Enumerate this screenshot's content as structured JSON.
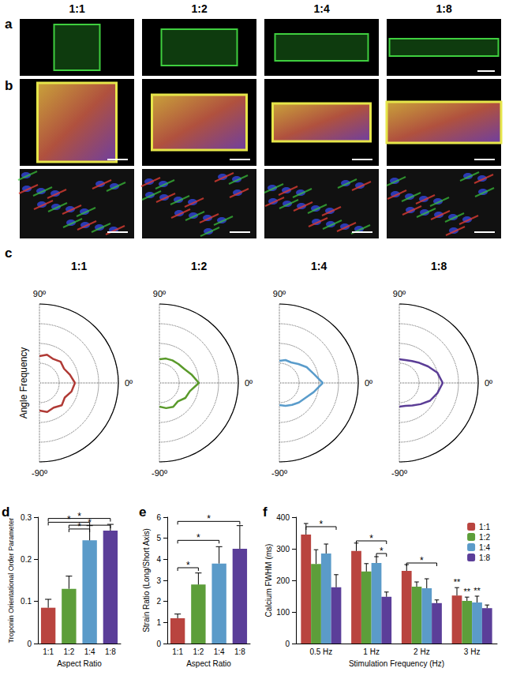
{
  "columns": [
    "1:1",
    "1:2",
    "1:4",
    "1:8"
  ],
  "panel_letters": [
    "a",
    "b",
    "c",
    "d",
    "e",
    "f"
  ],
  "chart_data": [
    {
      "type": "polar",
      "title": "1:1",
      "ylabel": "Angle Frequency",
      "color": "#b03a35",
      "x": [
        -90,
        -75,
        -60,
        -45,
        -30,
        -15,
        0,
        15,
        30,
        45,
        60,
        75,
        90
      ],
      "values": [
        0.35,
        0.38,
        0.36,
        0.4,
        0.37,
        0.42,
        0.45,
        0.4,
        0.36,
        0.38,
        0.35,
        0.37,
        0.34
      ],
      "xlim": [
        -90,
        90
      ],
      "xticks": [
        {
          "value": -90,
          "label": "-90º"
        },
        {
          "value": 0,
          "label": "0º"
        },
        {
          "value": 90,
          "label": "90º"
        }
      ],
      "ylim": [
        0,
        1
      ],
      "yticks": [
        0,
        0.25,
        0.5,
        0.75,
        1
      ],
      "tick_labels": "x",
      "grid": true
    },
    {
      "type": "polar",
      "title": "1:2",
      "color": "#5a9a2b",
      "x": [
        -90,
        -75,
        -60,
        -45,
        -30,
        -15,
        0,
        15,
        30,
        45,
        60,
        75,
        90
      ],
      "values": [
        0.3,
        0.33,
        0.35,
        0.33,
        0.38,
        0.4,
        0.5,
        0.42,
        0.36,
        0.34,
        0.33,
        0.32,
        0.3
      ],
      "xlim": [
        -90,
        90
      ],
      "xticks": [
        {
          "value": -90,
          "label": "-90º"
        },
        {
          "value": 0,
          "label": "0º"
        },
        {
          "value": 90,
          "label": "90º"
        }
      ],
      "ylim": [
        0,
        1
      ],
      "yticks": [
        0,
        0.25,
        0.5,
        0.75,
        1
      ],
      "tick_labels": "x",
      "grid": true
    },
    {
      "type": "polar",
      "title": "1:4",
      "color": "#5a9ccb",
      "x": [
        -90,
        -75,
        -60,
        -45,
        -30,
        -15,
        0,
        15,
        30,
        45,
        60,
        75,
        90
      ],
      "values": [
        0.28,
        0.3,
        0.32,
        0.35,
        0.38,
        0.45,
        0.55,
        0.45,
        0.4,
        0.34,
        0.3,
        0.3,
        0.28
      ],
      "xlim": [
        -90,
        90
      ],
      "xticks": [
        {
          "value": -90,
          "label": "-90º"
        },
        {
          "value": 0,
          "label": "0º"
        },
        {
          "value": 90,
          "label": "90º"
        }
      ],
      "ylim": [
        0,
        1
      ],
      "yticks": [
        0,
        0.25,
        0.5,
        0.75,
        1
      ],
      "tick_labels": "x",
      "grid": true
    },
    {
      "type": "polar",
      "title": "1:8",
      "color": "#5b3d96",
      "x": [
        -90,
        -75,
        -60,
        -45,
        -30,
        -15,
        0,
        15,
        30,
        45,
        60,
        75,
        90
      ],
      "values": [
        0.3,
        0.3,
        0.33,
        0.38,
        0.45,
        0.5,
        0.55,
        0.5,
        0.42,
        0.36,
        0.32,
        0.3,
        0.3
      ],
      "xlim": [
        -90,
        90
      ],
      "xticks": [
        {
          "value": -90,
          "label": "-90º"
        },
        {
          "value": 0,
          "label": "0º"
        },
        {
          "value": 90,
          "label": "90º"
        }
      ],
      "ylim": [
        0,
        1
      ],
      "yticks": [
        0,
        0.25,
        0.5,
        0.75,
        1
      ],
      "tick_labels": "x",
      "grid": true
    },
    {
      "type": "bar",
      "ylabel": "Troponin Orientational Order Parameter",
      "xlabel": "Aspect Ratio",
      "categories": [
        "1:1",
        "1:2",
        "1:4",
        "1:8"
      ],
      "values": [
        0.085,
        0.13,
        0.245,
        0.268
      ],
      "errors": [
        0.02,
        0.03,
        0.035,
        0.015
      ],
      "colors": [
        "#b9443f",
        "#5d9e3a",
        "#5b9bc9",
        "#5b3e99"
      ],
      "ylim": [
        0,
        0.3
      ],
      "yticks": [
        0,
        0.1,
        0.2,
        0.3
      ],
      "grid": false,
      "brackets": [
        {
          "from": "1:1",
          "to": "1:8",
          "y": 0.297,
          "label": "*"
        },
        {
          "from": "1:1",
          "to": "1:4",
          "y": 0.288,
          "label": "*"
        },
        {
          "from": "1:2",
          "to": "1:8",
          "y": 0.281,
          "label": "*"
        },
        {
          "from": "1:2",
          "to": "1:4",
          "y": 0.272,
          "label": "*"
        }
      ]
    },
    {
      "type": "bar",
      "ylabel": "Strain Ratio (Long/Short Axis)",
      "xlabel": "Aspect Ratio",
      "categories": [
        "1:1",
        "1:2",
        "1:4",
        "1:8"
      ],
      "values": [
        1.2,
        2.8,
        3.8,
        4.5
      ],
      "errors": [
        0.2,
        0.55,
        0.8,
        1.1
      ],
      "colors": [
        "#b9443f",
        "#5d9e3a",
        "#5b9bc9",
        "#5b3e99"
      ],
      "ylim": [
        0,
        6
      ],
      "yticks": [
        0,
        1,
        2,
        3,
        4,
        5,
        6
      ],
      "grid": false,
      "brackets": [
        {
          "from": "1:1",
          "to": "1:2",
          "y": 3.6,
          "label": "*"
        },
        {
          "from": "1:1",
          "to": "1:4",
          "y": 4.9,
          "label": "*"
        },
        {
          "from": "1:1",
          "to": "1:8",
          "y": 5.8,
          "label": "*"
        }
      ]
    },
    {
      "type": "bar",
      "ylabel": "Calcium FWHM (ms)",
      "xlabel": "Stimulation Frequency (Hz)",
      "categories": [
        "0.5 Hz",
        "1 Hz",
        "2 Hz",
        "3 Hz"
      ],
      "series": [
        {
          "name": "1:1",
          "color": "#b9443f",
          "values": [
            345,
            293,
            230,
            152
          ],
          "errors": [
            35,
            25,
            20,
            25
          ]
        },
        {
          "name": "1:2",
          "color": "#5d9e3a",
          "values": [
            252,
            228,
            180,
            135
          ],
          "errors": [
            45,
            25,
            15,
            12
          ]
        },
        {
          "name": "1:4",
          "color": "#5b9bc9",
          "values": [
            285,
            255,
            175,
            130
          ],
          "errors": [
            30,
            20,
            30,
            20
          ]
        },
        {
          "name": "1:8",
          "color": "#5b3e99",
          "values": [
            178,
            148,
            128,
            112
          ],
          "errors": [
            40,
            15,
            10,
            10
          ]
        }
      ],
      "ylim": [
        0,
        400
      ],
      "yticks": [
        0,
        100,
        200,
        300,
        400
      ],
      "grid": false,
      "legend": "upper right",
      "brackets": [
        {
          "category": "0.5 Hz",
          "from": "1:1",
          "to": "1:8",
          "y": 370,
          "label": "*"
        },
        {
          "category": "1 Hz",
          "from": "1:1",
          "to": "1:8",
          "y": 325,
          "label": "*"
        },
        {
          "category": "1 Hz",
          "from": "1:4",
          "to": "1:8",
          "y": 285,
          "label": "*"
        },
        {
          "category": "2 Hz",
          "from": "1:1",
          "to": "1:8",
          "y": 255,
          "label": "*"
        }
      ],
      "annotations": [
        {
          "category": "3 Hz",
          "series": "1:1",
          "y": 182,
          "label": "**"
        },
        {
          "category": "3 Hz",
          "series": "1:2",
          "y": 152,
          "label": "**"
        },
        {
          "category": "3 Hz",
          "series": "1:4",
          "y": 155,
          "label": "**"
        }
      ]
    }
  ]
}
